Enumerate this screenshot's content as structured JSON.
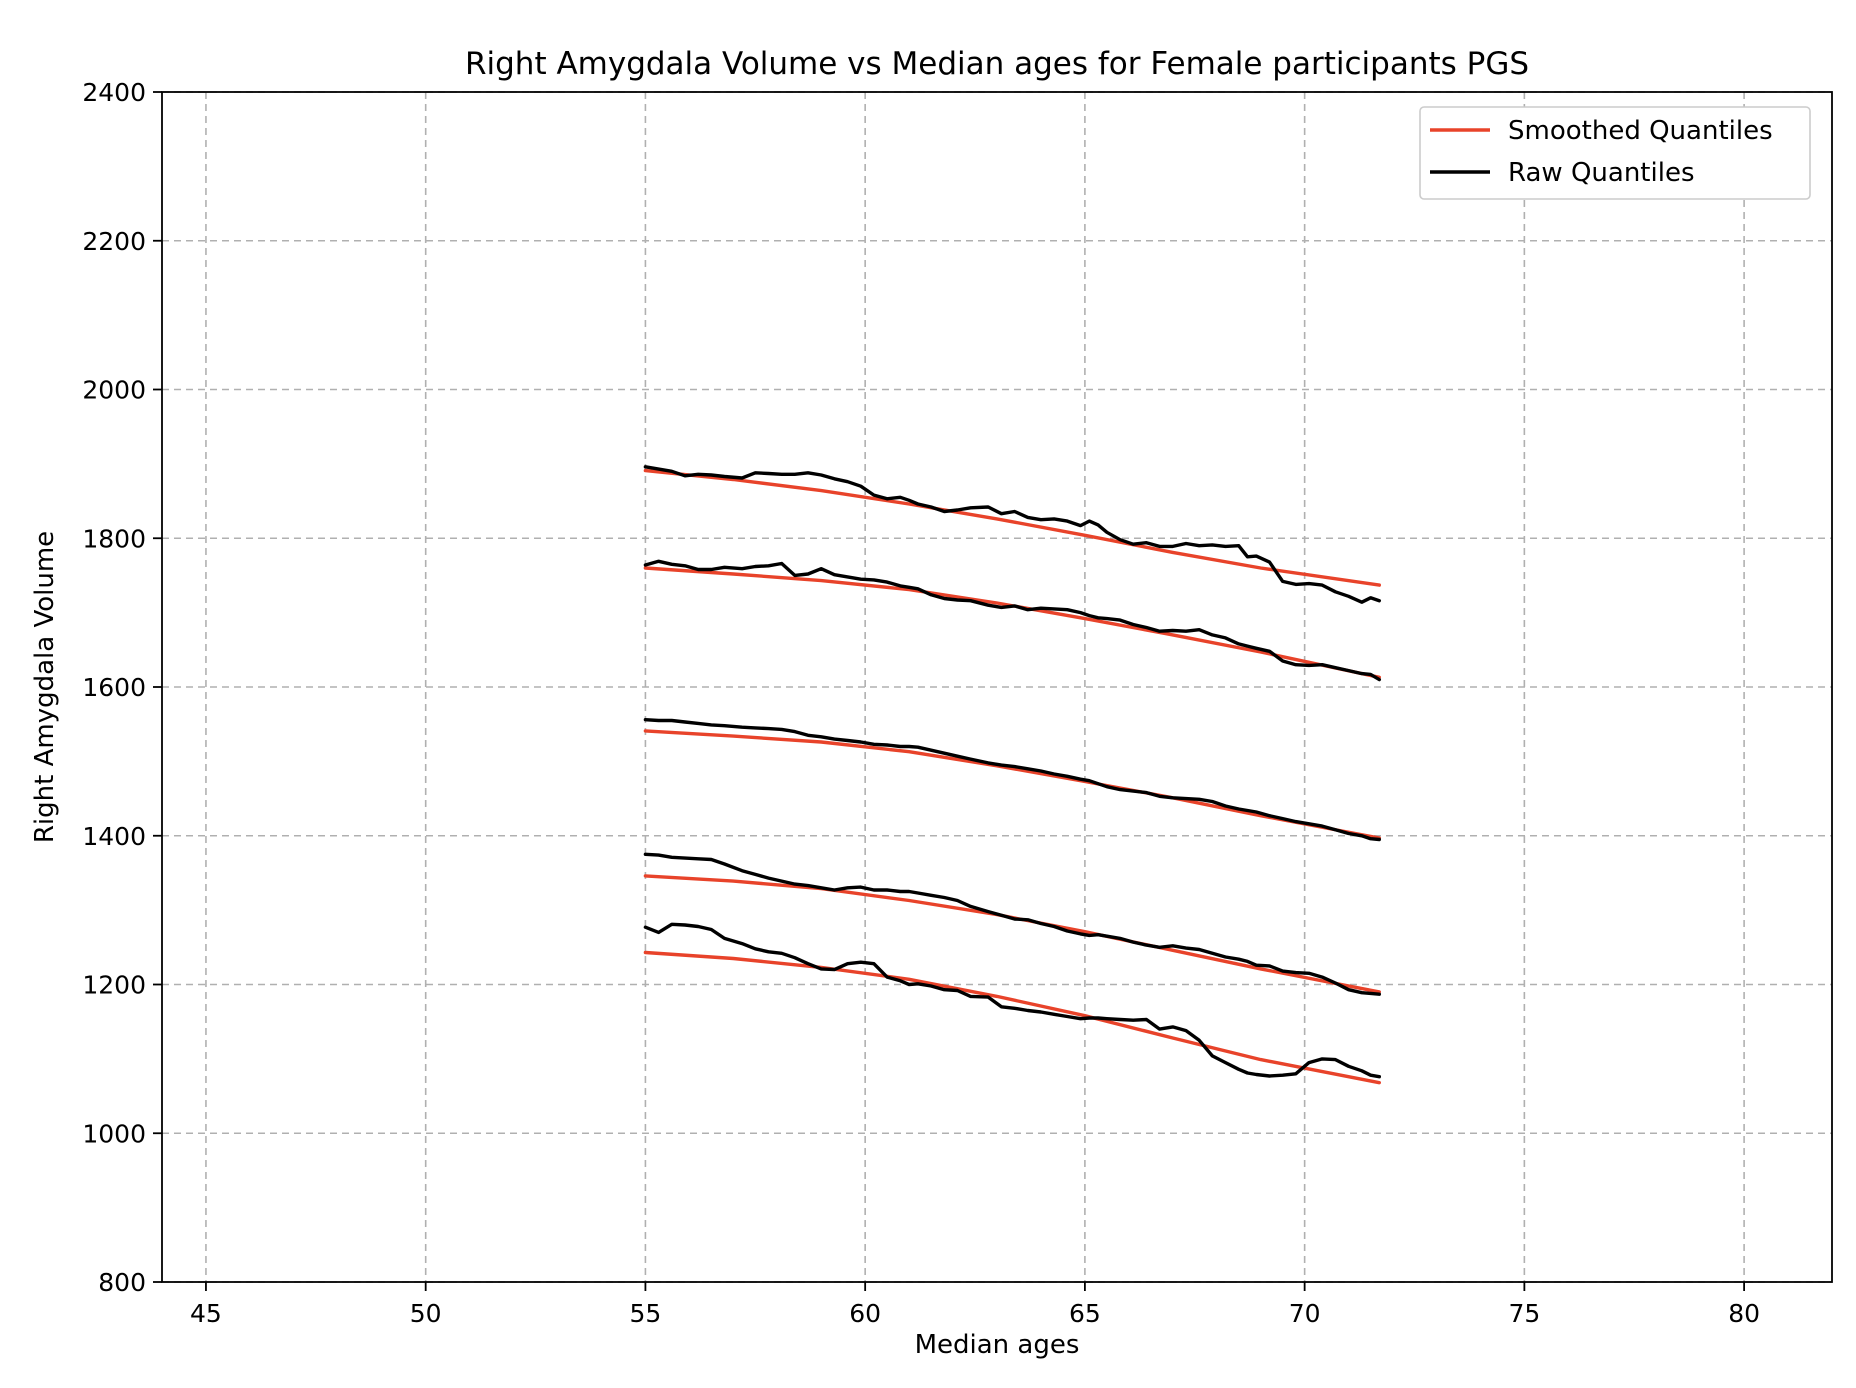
{
  "chart_data": {
    "type": "line",
    "title": "Right Amygdala Volume vs Median ages for Female participants  PGS",
    "xlabel": "Median ages",
    "ylabel": "Right Amygdala Volume",
    "xlim": [
      44,
      82
    ],
    "ylim": [
      800,
      2400
    ],
    "xticks": [
      45,
      50,
      55,
      60,
      65,
      70,
      75,
      80
    ],
    "yticks": [
      800,
      1000,
      1200,
      1400,
      1600,
      1800,
      2000,
      2200,
      2400
    ],
    "grid": true,
    "legend_position": "top-right",
    "legend": [
      {
        "label": "Smoothed Quantiles",
        "color": "#e8432a"
      },
      {
        "label": "Raw Quantiles",
        "color": "#000000"
      }
    ],
    "smoothed_quantiles": [
      {
        "x": [
          55,
          57,
          59,
          61,
          63,
          65,
          67,
          69,
          71.7
        ],
        "y": [
          1891,
          1879,
          1864,
          1846,
          1826,
          1804,
          1781,
          1760,
          1737
        ]
      },
      {
        "x": [
          55,
          57,
          59,
          61,
          63,
          65,
          67,
          69,
          71.7
        ],
        "y": [
          1760,
          1752,
          1743,
          1731,
          1713,
          1692,
          1670,
          1647,
          1613
        ]
      },
      {
        "x": [
          55,
          57,
          59,
          61,
          63,
          65,
          67,
          69,
          71.7
        ],
        "y": [
          1541,
          1534,
          1526,
          1513,
          1494,
          1473,
          1451,
          1427,
          1397
        ]
      },
      {
        "x": [
          55,
          57,
          59,
          61,
          63,
          65,
          67,
          69,
          71.7
        ],
        "y": [
          1346,
          1339,
          1329,
          1313,
          1294,
          1271,
          1246,
          1221,
          1190
        ]
      },
      {
        "x": [
          55,
          57,
          59,
          61,
          63,
          65,
          67,
          69,
          71.7
        ],
        "y": [
          1243,
          1235,
          1223,
          1207,
          1184,
          1158,
          1128,
          1099,
          1068
        ]
      }
    ],
    "raw_quantiles": [
      {
        "x": [
          55,
          55.3,
          55.6,
          55.9,
          56.2,
          56.5,
          56.8,
          57.2,
          57.5,
          57.8,
          58.1,
          58.4,
          58.7,
          59,
          59.3,
          59.6,
          59.9,
          60.2,
          60.5,
          60.8,
          61,
          61.2,
          61.5,
          61.8,
          62.1,
          62.4,
          62.8,
          63.1,
          63.4,
          63.7,
          64,
          64.3,
          64.6,
          64.9,
          65.1,
          65.3,
          65.5,
          65.8,
          66.1,
          66.4,
          66.7,
          67,
          67.3,
          67.6,
          67.9,
          68.2,
          68.5,
          68.7,
          68.9,
          69.2,
          69.5,
          69.8,
          70.1,
          70.4,
          70.7,
          71,
          71.3,
          71.5,
          71.7
        ],
        "y": [
          1896,
          1893,
          1890,
          1884,
          1886,
          1885,
          1883,
          1881,
          1888,
          1887,
          1886,
          1886,
          1888,
          1885,
          1880,
          1876,
          1870,
          1858,
          1853,
          1855,
          1851,
          1846,
          1842,
          1836,
          1838,
          1841,
          1842,
          1833,
          1836,
          1828,
          1825,
          1826,
          1823,
          1817,
          1823,
          1818,
          1808,
          1798,
          1792,
          1794,
          1789,
          1789,
          1793,
          1790,
          1791,
          1789,
          1790,
          1775,
          1776,
          1768,
          1742,
          1738,
          1739,
          1737,
          1728,
          1722,
          1714,
          1720,
          1716
        ]
      },
      {
        "x": [
          55,
          55.3,
          55.6,
          55.9,
          56.2,
          56.5,
          56.8,
          57.2,
          57.5,
          57.8,
          58.1,
          58.4,
          58.7,
          59,
          59.3,
          59.6,
          59.9,
          60.2,
          60.5,
          60.8,
          61,
          61.2,
          61.5,
          61.8,
          62.1,
          62.4,
          62.8,
          63.1,
          63.4,
          63.7,
          64,
          64.3,
          64.6,
          64.9,
          65.1,
          65.3,
          65.5,
          65.8,
          66.1,
          66.4,
          66.7,
          67,
          67.3,
          67.6,
          67.9,
          68.2,
          68.5,
          68.7,
          68.9,
          69.2,
          69.5,
          69.8,
          70.1,
          70.4,
          70.7,
          71,
          71.3,
          71.5,
          71.7
        ],
        "y": [
          1764,
          1769,
          1765,
          1763,
          1758,
          1758,
          1761,
          1759,
          1762,
          1763,
          1766,
          1750,
          1752,
          1759,
          1751,
          1748,
          1745,
          1744,
          1741,
          1736,
          1734,
          1732,
          1724,
          1719,
          1717,
          1716,
          1710,
          1707,
          1709,
          1704,
          1706,
          1705,
          1704,
          1700,
          1696,
          1693,
          1692,
          1690,
          1684,
          1680,
          1675,
          1676,
          1675,
          1677,
          1670,
          1666,
          1658,
          1655,
          1652,
          1648,
          1635,
          1630,
          1629,
          1630,
          1626,
          1622,
          1618,
          1617,
          1610
        ]
      },
      {
        "x": [
          55,
          55.3,
          55.6,
          55.9,
          56.2,
          56.5,
          56.8,
          57.2,
          57.5,
          57.8,
          58.1,
          58.4,
          58.7,
          59,
          59.3,
          59.6,
          59.9,
          60.2,
          60.5,
          60.8,
          61,
          61.2,
          61.5,
          61.8,
          62.1,
          62.4,
          62.8,
          63.1,
          63.4,
          63.7,
          64,
          64.3,
          64.6,
          64.9,
          65.1,
          65.3,
          65.5,
          65.8,
          66.1,
          66.4,
          66.7,
          67,
          67.3,
          67.6,
          67.9,
          68.2,
          68.5,
          68.7,
          68.9,
          69.2,
          69.5,
          69.8,
          70.1,
          70.4,
          70.7,
          71,
          71.3,
          71.5,
          71.7
        ],
        "y": [
          1556,
          1555,
          1555,
          1553,
          1551,
          1549,
          1548,
          1546,
          1545,
          1544,
          1543,
          1540,
          1535,
          1533,
          1530,
          1528,
          1526,
          1523,
          1522,
          1520,
          1520,
          1519,
          1515,
          1511,
          1507,
          1503,
          1498,
          1495,
          1493,
          1490,
          1487,
          1483,
          1480,
          1476,
          1474,
          1470,
          1466,
          1462,
          1460,
          1458,
          1453,
          1451,
          1450,
          1449,
          1446,
          1440,
          1436,
          1434,
          1432,
          1427,
          1423,
          1419,
          1416,
          1413,
          1408,
          1403,
          1400,
          1396,
          1395
        ]
      },
      {
        "x": [
          55,
          55.3,
          55.6,
          55.9,
          56.2,
          56.5,
          56.8,
          57.2,
          57.5,
          57.8,
          58.1,
          58.4,
          58.7,
          59,
          59.3,
          59.6,
          59.9,
          60.2,
          60.5,
          60.8,
          61,
          61.2,
          61.5,
          61.8,
          62.1,
          62.4,
          62.8,
          63.1,
          63.4,
          63.7,
          64,
          64.3,
          64.6,
          64.9,
          65.1,
          65.3,
          65.5,
          65.8,
          66.1,
          66.4,
          66.7,
          67,
          67.3,
          67.6,
          67.9,
          68.2,
          68.5,
          68.7,
          68.9,
          69.2,
          69.5,
          69.8,
          70.1,
          70.4,
          70.7,
          71,
          71.3,
          71.5,
          71.7
        ],
        "y": [
          1375,
          1374,
          1371,
          1370,
          1369,
          1368,
          1362,
          1353,
          1348,
          1343,
          1339,
          1335,
          1333,
          1330,
          1327,
          1330,
          1331,
          1327,
          1327,
          1325,
          1325,
          1323,
          1320,
          1317,
          1313,
          1305,
          1298,
          1293,
          1288,
          1287,
          1282,
          1278,
          1272,
          1268,
          1266,
          1267,
          1265,
          1262,
          1257,
          1253,
          1250,
          1252,
          1249,
          1247,
          1242,
          1237,
          1234,
          1231,
          1226,
          1225,
          1218,
          1216,
          1215,
          1210,
          1202,
          1193,
          1189,
          1188,
          1187
        ]
      },
      {
        "x": [
          55,
          55.3,
          55.6,
          55.9,
          56.2,
          56.5,
          56.8,
          57.2,
          57.5,
          57.8,
          58.1,
          58.4,
          58.7,
          59,
          59.3,
          59.6,
          59.9,
          60.2,
          60.5,
          60.8,
          61,
          61.2,
          61.5,
          61.8,
          62.1,
          62.4,
          62.8,
          63.1,
          63.4,
          63.7,
          64,
          64.3,
          64.6,
          64.9,
          65.1,
          65.3,
          65.5,
          65.8,
          66.1,
          66.4,
          66.7,
          67,
          67.3,
          67.6,
          67.9,
          68.2,
          68.5,
          68.7,
          68.9,
          69.2,
          69.5,
          69.8,
          70.1,
          70.4,
          70.7,
          71,
          71.3,
          71.5,
          71.7
        ],
        "y": [
          1277,
          1270,
          1281,
          1280,
          1278,
          1274,
          1262,
          1255,
          1248,
          1244,
          1242,
          1236,
          1228,
          1221,
          1220,
          1228,
          1230,
          1228,
          1210,
          1205,
          1200,
          1201,
          1198,
          1193,
          1192,
          1184,
          1183,
          1170,
          1168,
          1165,
          1163,
          1160,
          1157,
          1154,
          1155,
          1155,
          1154,
          1153,
          1152,
          1153,
          1140,
          1143,
          1138,
          1125,
          1104,
          1095,
          1086,
          1081,
          1079,
          1077,
          1078,
          1080,
          1095,
          1100,
          1099,
          1090,
          1084,
          1078,
          1076
        ]
      }
    ]
  }
}
